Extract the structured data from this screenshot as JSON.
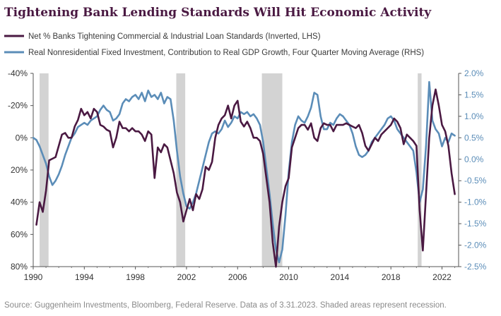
{
  "chart_data": {
    "type": "line",
    "title": "Tightening Bank Lending Standards Will Hit Economic Activity",
    "legend": {
      "placement": "top-left",
      "entries": [
        "Net % Banks Tightening Commercial & Industrial Loan Standards (Inverted, LHS)",
        "Real Nonresidential Fixed Investment, Contribution to Real GDP Growth, Four Quarter Moving Average (RHS)"
      ]
    },
    "x_axis": {
      "range": [
        1990,
        2023.3
      ],
      "tick_values": [
        1990,
        1994,
        1998,
        2002,
        2006,
        2010,
        2014,
        2018,
        2022
      ],
      "tick_labels": [
        "1990",
        "1994",
        "1998",
        "2002",
        "2006",
        "2010",
        "2014",
        "2018",
        "2022"
      ]
    },
    "y_left": {
      "inverted": true,
      "range": [
        -40,
        80
      ],
      "tick_values": [
        -40,
        -20,
        0,
        20,
        40,
        60,
        80
      ],
      "tick_labels": [
        "-40%",
        "-20%",
        "0%",
        "20%",
        "40%",
        "60%",
        "80%"
      ]
    },
    "y_right": {
      "range": [
        -2.5,
        2.0
      ],
      "tick_values": [
        2.0,
        1.5,
        1.0,
        0.5,
        0.0,
        -0.5,
        -1.0,
        -1.5,
        -2.0,
        -2.5
      ],
      "tick_labels": [
        "2.0%",
        "1.5%",
        "1.0%",
        "0.5%",
        "0.0%",
        "-0.5%",
        "-1.0%",
        "-1.5%",
        "-2.0%",
        "-2.5%"
      ]
    },
    "recessions": [
      [
        1990.5,
        1991.2
      ],
      [
        2001.2,
        2001.9
      ],
      [
        2007.9,
        2009.5
      ],
      [
        2020.1,
        2020.4
      ]
    ],
    "series": [
      {
        "name": "Net % Banks Tightening Commercial & Industrial Loan Standards (Inverted, LHS)",
        "color": "#4a1942",
        "axis": "left",
        "points": [
          [
            1990.25,
            54
          ],
          [
            1990.5,
            40
          ],
          [
            1990.75,
            46
          ],
          [
            1991.0,
            33
          ],
          [
            1991.25,
            14
          ],
          [
            1991.5,
            13
          ],
          [
            1991.75,
            12
          ],
          [
            1992.0,
            5
          ],
          [
            1992.25,
            -2
          ],
          [
            1992.5,
            -3
          ],
          [
            1992.75,
            0
          ],
          [
            1993.0,
            0
          ],
          [
            1993.25,
            -7
          ],
          [
            1993.5,
            -11
          ],
          [
            1993.75,
            -18
          ],
          [
            1994.0,
            -14
          ],
          [
            1994.25,
            -16
          ],
          [
            1994.5,
            -12
          ],
          [
            1994.75,
            -18
          ],
          [
            1995.0,
            -16
          ],
          [
            1995.25,
            -8
          ],
          [
            1995.5,
            -7
          ],
          [
            1995.75,
            -5
          ],
          [
            1996.0,
            -4
          ],
          [
            1996.25,
            6
          ],
          [
            1996.5,
            0
          ],
          [
            1996.75,
            -10
          ],
          [
            1997.0,
            -6
          ],
          [
            1997.25,
            -6
          ],
          [
            1997.5,
            -4
          ],
          [
            1997.75,
            -6
          ],
          [
            1998.0,
            -4
          ],
          [
            1998.25,
            -4
          ],
          [
            1998.5,
            -2
          ],
          [
            1998.75,
            2
          ],
          [
            1999.0,
            -4
          ],
          [
            1999.25,
            -2
          ],
          [
            1999.5,
            25
          ],
          [
            1999.75,
            6
          ],
          [
            2000.0,
            9
          ],
          [
            2000.25,
            4
          ],
          [
            2000.5,
            6
          ],
          [
            2000.75,
            14
          ],
          [
            2001.0,
            22
          ],
          [
            2001.25,
            34
          ],
          [
            2001.5,
            40
          ],
          [
            2001.75,
            52
          ],
          [
            2002.0,
            45
          ],
          [
            2002.25,
            38
          ],
          [
            2002.5,
            45
          ],
          [
            2002.75,
            35
          ],
          [
            2003.0,
            38
          ],
          [
            2003.25,
            32
          ],
          [
            2003.5,
            18
          ],
          [
            2003.75,
            20
          ],
          [
            2004.0,
            15
          ],
          [
            2004.25,
            0
          ],
          [
            2004.5,
            -8
          ],
          [
            2004.75,
            -12
          ],
          [
            2005.0,
            -14
          ],
          [
            2005.25,
            -20
          ],
          [
            2005.5,
            -12
          ],
          [
            2005.75,
            -20
          ],
          [
            2006.0,
            -23
          ],
          [
            2006.25,
            -10
          ],
          [
            2006.5,
            -7
          ],
          [
            2006.75,
            -10
          ],
          [
            2007.0,
            -6
          ],
          [
            2007.25,
            0
          ],
          [
            2007.5,
            0
          ],
          [
            2007.75,
            2
          ],
          [
            2008.0,
            10
          ],
          [
            2008.25,
            25
          ],
          [
            2008.5,
            40
          ],
          [
            2008.75,
            65
          ],
          [
            2009.0,
            80
          ],
          [
            2009.25,
            55
          ],
          [
            2009.5,
            40
          ],
          [
            2009.75,
            30
          ],
          [
            2010.0,
            25
          ],
          [
            2010.25,
            6
          ],
          [
            2010.5,
            0
          ],
          [
            2010.75,
            -6
          ],
          [
            2011.0,
            -8
          ],
          [
            2011.25,
            -8
          ],
          [
            2011.5,
            -5
          ],
          [
            2011.75,
            -9
          ],
          [
            2012.0,
            0
          ],
          [
            2012.25,
            2
          ],
          [
            2012.5,
            -6
          ],
          [
            2012.75,
            -9
          ],
          [
            2013.0,
            -8
          ],
          [
            2013.25,
            -8
          ],
          [
            2013.5,
            -4
          ],
          [
            2013.75,
            -8
          ],
          [
            2014.0,
            -8
          ],
          [
            2014.25,
            -8
          ],
          [
            2014.5,
            -9
          ],
          [
            2014.75,
            -8
          ],
          [
            2015.0,
            -7
          ],
          [
            2015.25,
            -6
          ],
          [
            2015.5,
            -8
          ],
          [
            2015.75,
            -3
          ],
          [
            2016.0,
            5
          ],
          [
            2016.25,
            8
          ],
          [
            2016.5,
            4
          ],
          [
            2016.75,
            0
          ],
          [
            2017.0,
            2
          ],
          [
            2017.25,
            -2
          ],
          [
            2017.5,
            -4
          ],
          [
            2017.75,
            -6
          ],
          [
            2018.0,
            -8
          ],
          [
            2018.25,
            -12
          ],
          [
            2018.5,
            -10
          ],
          [
            2018.75,
            -6
          ],
          [
            2019.0,
            4
          ],
          [
            2019.25,
            -2
          ],
          [
            2019.5,
            0
          ],
          [
            2019.75,
            2
          ],
          [
            2020.0,
            5
          ],
          [
            2020.25,
            45
          ],
          [
            2020.5,
            70
          ],
          [
            2020.75,
            35
          ],
          [
            2021.0,
            0
          ],
          [
            2021.25,
            -20
          ],
          [
            2021.5,
            -30
          ],
          [
            2021.75,
            -20
          ],
          [
            2022.0,
            -8
          ],
          [
            2022.25,
            -4
          ],
          [
            2022.5,
            5
          ],
          [
            2022.75,
            22
          ],
          [
            2023.0,
            35
          ]
        ]
      },
      {
        "name": "Real Nonresidential Fixed Investment, Contribution to Real GDP Growth, Four Quarter Moving Average (RHS)",
        "color": "#5b8db8",
        "axis": "right",
        "points": [
          [
            1990.0,
            0.5
          ],
          [
            1990.25,
            0.45
          ],
          [
            1990.5,
            0.3
          ],
          [
            1990.75,
            0.1
          ],
          [
            1991.0,
            -0.1
          ],
          [
            1991.25,
            -0.4
          ],
          [
            1991.5,
            -0.6
          ],
          [
            1991.75,
            -0.5
          ],
          [
            1992.0,
            -0.35
          ],
          [
            1992.25,
            -0.15
          ],
          [
            1992.5,
            0.1
          ],
          [
            1992.75,
            0.3
          ],
          [
            1993.0,
            0.5
          ],
          [
            1993.25,
            0.6
          ],
          [
            1993.5,
            0.75
          ],
          [
            1993.75,
            0.8
          ],
          [
            1994.0,
            0.85
          ],
          [
            1994.25,
            0.8
          ],
          [
            1994.5,
            0.9
          ],
          [
            1994.75,
            0.95
          ],
          [
            1995.0,
            1.0
          ],
          [
            1995.25,
            1.15
          ],
          [
            1995.5,
            1.25
          ],
          [
            1995.75,
            1.15
          ],
          [
            1996.0,
            1.1
          ],
          [
            1996.25,
            0.9
          ],
          [
            1996.5,
            0.95
          ],
          [
            1996.75,
            1.05
          ],
          [
            1997.0,
            1.3
          ],
          [
            1997.25,
            1.4
          ],
          [
            1997.5,
            1.35
          ],
          [
            1997.75,
            1.45
          ],
          [
            1998.0,
            1.5
          ],
          [
            1998.25,
            1.4
          ],
          [
            1998.5,
            1.55
          ],
          [
            1998.75,
            1.35
          ],
          [
            1999.0,
            1.6
          ],
          [
            1999.25,
            1.45
          ],
          [
            1999.5,
            1.5
          ],
          [
            1999.75,
            1.4
          ],
          [
            2000.0,
            1.55
          ],
          [
            2000.25,
            1.3
          ],
          [
            2000.5,
            1.45
          ],
          [
            2000.75,
            1.4
          ],
          [
            2001.0,
            0.9
          ],
          [
            2001.25,
            0.2
          ],
          [
            2001.5,
            -0.4
          ],
          [
            2001.75,
            -0.8
          ],
          [
            2002.0,
            -1.1
          ],
          [
            2002.25,
            -1.15
          ],
          [
            2002.5,
            -1.0
          ],
          [
            2002.75,
            -0.8
          ],
          [
            2003.0,
            -0.5
          ],
          [
            2003.25,
            -0.2
          ],
          [
            2003.5,
            0.1
          ],
          [
            2003.75,
            0.4
          ],
          [
            2004.0,
            0.6
          ],
          [
            2004.25,
            0.65
          ],
          [
            2004.5,
            0.6
          ],
          [
            2004.75,
            0.7
          ],
          [
            2005.0,
            0.9
          ],
          [
            2005.25,
            0.75
          ],
          [
            2005.5,
            0.85
          ],
          [
            2005.75,
            1.0
          ],
          [
            2006.0,
            0.95
          ],
          [
            2006.25,
            1.1
          ],
          [
            2006.5,
            1.05
          ],
          [
            2006.75,
            1.1
          ],
          [
            2007.0,
            1.0
          ],
          [
            2007.25,
            1.05
          ],
          [
            2007.5,
            0.95
          ],
          [
            2007.75,
            0.8
          ],
          [
            2008.0,
            0.4
          ],
          [
            2008.25,
            -0.2
          ],
          [
            2008.5,
            -0.8
          ],
          [
            2008.75,
            -1.5
          ],
          [
            2009.0,
            -2.1
          ],
          [
            2009.25,
            -2.4
          ],
          [
            2009.5,
            -2.1
          ],
          [
            2009.75,
            -1.3
          ],
          [
            2010.0,
            -0.3
          ],
          [
            2010.25,
            0.4
          ],
          [
            2010.5,
            0.8
          ],
          [
            2010.75,
            1.0
          ],
          [
            2011.0,
            0.9
          ],
          [
            2011.25,
            0.85
          ],
          [
            2011.5,
            1.0
          ],
          [
            2011.75,
            1.2
          ],
          [
            2012.0,
            1.55
          ],
          [
            2012.25,
            1.5
          ],
          [
            2012.5,
            1.0
          ],
          [
            2012.75,
            0.7
          ],
          [
            2013.0,
            0.7
          ],
          [
            2013.25,
            0.85
          ],
          [
            2013.5,
            0.8
          ],
          [
            2013.75,
            0.95
          ],
          [
            2014.0,
            1.05
          ],
          [
            2014.25,
            1.0
          ],
          [
            2014.5,
            0.9
          ],
          [
            2014.75,
            0.8
          ],
          [
            2015.0,
            0.6
          ],
          [
            2015.25,
            0.3
          ],
          [
            2015.5,
            0.1
          ],
          [
            2015.75,
            0.05
          ],
          [
            2016.0,
            0.1
          ],
          [
            2016.25,
            0.2
          ],
          [
            2016.5,
            0.4
          ],
          [
            2016.75,
            0.5
          ],
          [
            2017.0,
            0.6
          ],
          [
            2017.25,
            0.7
          ],
          [
            2017.5,
            0.8
          ],
          [
            2017.75,
            0.95
          ],
          [
            2018.0,
            1.0
          ],
          [
            2018.25,
            0.9
          ],
          [
            2018.5,
            0.7
          ],
          [
            2018.75,
            0.6
          ],
          [
            2019.0,
            0.5
          ],
          [
            2019.25,
            0.4
          ],
          [
            2019.5,
            0.3
          ],
          [
            2019.75,
            0.2
          ],
          [
            2020.0,
            -0.3
          ],
          [
            2020.25,
            -1.0
          ],
          [
            2020.5,
            -0.7
          ],
          [
            2020.75,
            0.3
          ],
          [
            2021.0,
            1.8
          ],
          [
            2021.25,
            0.9
          ],
          [
            2021.5,
            0.7
          ],
          [
            2021.75,
            0.6
          ],
          [
            2022.0,
            0.3
          ],
          [
            2022.25,
            0.5
          ],
          [
            2022.5,
            0.4
          ],
          [
            2022.75,
            0.6
          ],
          [
            2023.0,
            0.55
          ]
        ]
      }
    ],
    "source_note": "Source: Guggenheim Investments, Bloomberg, Federal Reserve. Data as of 3.31.2023. Shaded areas represent recession.",
    "grid": false
  }
}
